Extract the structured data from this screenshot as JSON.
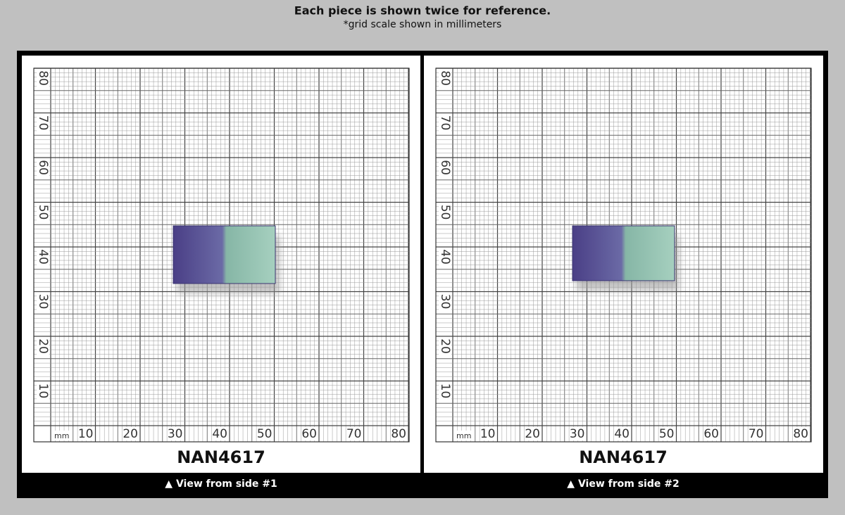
{
  "header": {
    "title": "Each piece is shown twice for reference.",
    "subtitle": "*grid scale shown in millimeters"
  },
  "panels": [
    {
      "x_labels": [
        10,
        20,
        30,
        40,
        50,
        60,
        70,
        80
      ],
      "y_labels": [
        10,
        20,
        30,
        40,
        50,
        60,
        70,
        80
      ],
      "unit": "mm",
      "code": "NAN4617",
      "caption": "▲ View from side #1"
    },
    {
      "x_labels": [
        10,
        20,
        30,
        40,
        50,
        60,
        70,
        80
      ],
      "y_labels": [
        10,
        20,
        30,
        40,
        50,
        60,
        70,
        80
      ],
      "unit": "mm",
      "code": "NAN4617",
      "caption": "▲ View from side #2"
    }
  ]
}
